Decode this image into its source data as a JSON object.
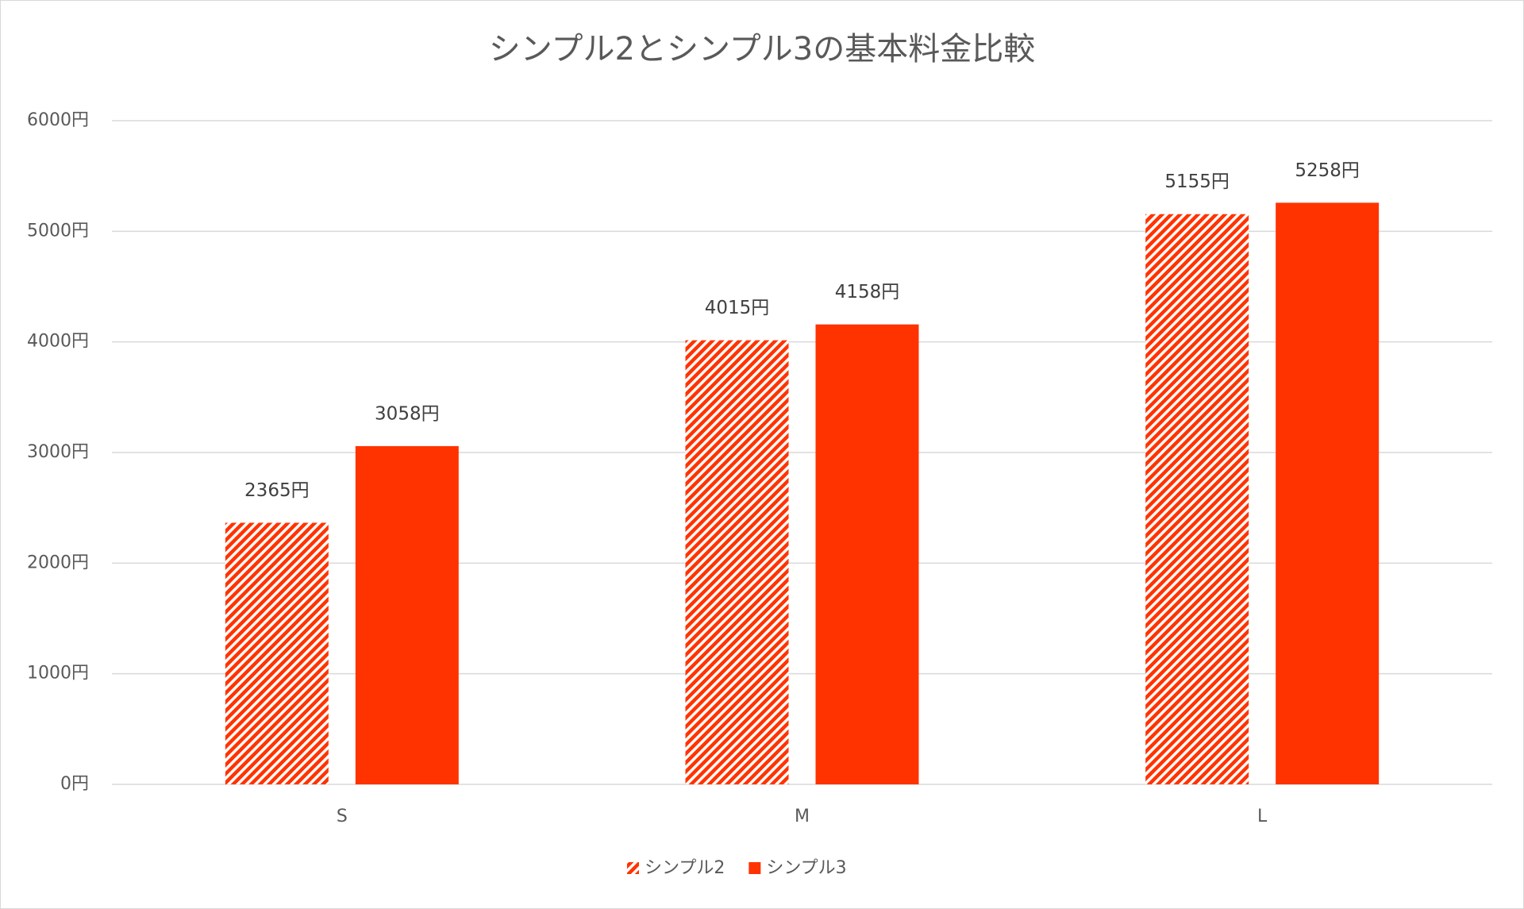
{
  "chart_data": {
    "type": "bar",
    "title": "シンプル2とシンプル3の基本料金比較",
    "categories": [
      "S",
      "M",
      "L"
    ],
    "series": [
      {
        "name": "シンプル2",
        "color": "#ff3300",
        "pattern": "diagonal-stripes",
        "values": [
          2365,
          4015,
          5155
        ],
        "value_labels": [
          "2365円",
          "4015円",
          "5155円"
        ]
      },
      {
        "name": "シンプル3",
        "color": "#ff3300",
        "pattern": "solid",
        "values": [
          3058,
          4158,
          5258
        ],
        "value_labels": [
          "3058円",
          "4158円",
          "5258円"
        ]
      }
    ],
    "ylim": [
      0,
      6000
    ],
    "yticks": [
      {
        "value": 0,
        "label": "0円"
      },
      {
        "value": 1000,
        "label": "1000円"
      },
      {
        "value": 2000,
        "label": "2000円"
      },
      {
        "value": 3000,
        "label": "3000円"
      },
      {
        "value": 4000,
        "label": "4000円"
      },
      {
        "value": 5000,
        "label": "5000円"
      },
      {
        "value": 6000,
        "label": "6000円"
      }
    ],
    "grid": true,
    "legend": "bottom"
  }
}
